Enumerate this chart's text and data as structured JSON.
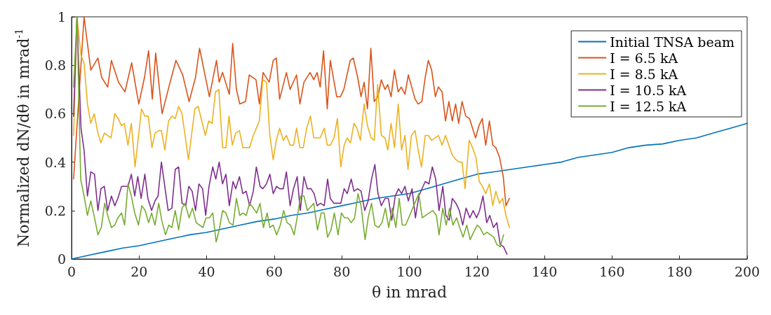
{
  "chart_data": {
    "type": "line",
    "xlabel": "θ in mrad",
    "ylabel": "Normalized dN/dθ in mrad$^{-1}$",
    "xlim": [
      0,
      200
    ],
    "xticks": [
      0,
      20,
      40,
      60,
      80,
      100,
      120,
      140,
      160,
      180,
      200
    ],
    "ylim": [
      0,
      1
    ],
    "yticks": [
      0,
      0.2,
      0.4,
      0.6,
      0.8,
      1
    ],
    "grid": false,
    "legend": "top right",
    "marker": "none",
    "line_style": "solid",
    "series": [
      {
        "name": "Initial TNSA beam",
        "color": "#0072bd",
        "x": [
          0,
          5,
          10,
          15,
          20,
          25,
          30,
          35,
          40,
          45,
          50,
          55,
          60,
          65,
          70,
          75,
          80,
          85,
          90,
          95,
          100,
          105,
          110,
          115,
          120,
          125,
          130,
          135,
          140,
          145,
          150,
          155,
          160,
          165,
          170,
          175,
          180,
          185,
          190,
          195,
          200
        ],
        "values": [
          0,
          0.015,
          0.03,
          0.045,
          0.055,
          0.07,
          0.085,
          0.1,
          0.11,
          0.125,
          0.14,
          0.155,
          0.165,
          0.18,
          0.19,
          0.205,
          0.22,
          0.235,
          0.25,
          0.26,
          0.27,
          0.29,
          0.31,
          0.33,
          0.35,
          0.36,
          0.37,
          0.38,
          0.39,
          0.4,
          0.42,
          0.43,
          0.44,
          0.46,
          0.47,
          0.475,
          0.49,
          0.5,
          0.52,
          0.54,
          0.56
        ]
      },
      {
        "name": "I = 6.5 kA",
        "color": "#d95319",
        "x": [
          0.6,
          3.7,
          5.7,
          7.8,
          8.9,
          10.7,
          11.8,
          13.9,
          15.8,
          17.8,
          19.9,
          21.6,
          22.8,
          23.9,
          24.9,
          26.8,
          28.8,
          30.9,
          32.9,
          34.8,
          36.7,
          37.9,
          40.8,
          42.9,
          43.7,
          44.7,
          46.7,
          47.7,
          48.8,
          49.8,
          51.5,
          52.6,
          54.6,
          55.6,
          56.7,
          58.5,
          59.7,
          60.6,
          61.6,
          63.6,
          64.7,
          66.6,
          67.6,
          68.8,
          70.6,
          71.7,
          72.7,
          73.6,
          74.6,
          75.7,
          76.6,
          78.5,
          79.6,
          80.6,
          82.5,
          83.4,
          84.7,
          85.7,
          86.6,
          87.6,
          88.6,
          89.6,
          90.7,
          91.7,
          92.8,
          93.6,
          94.6,
          95.6,
          96.7,
          97.6,
          98.7,
          99.7,
          101.7,
          102.6,
          103.7,
          104.7,
          105.6,
          106.6,
          107.7,
          108.6,
          109.7,
          110.7,
          111.7,
          112.7,
          113.7,
          114.6,
          115.6,
          116.7,
          117.8,
          119.6,
          120.6,
          121.6,
          122.6,
          123.7,
          124.7,
          125.6,
          126.7,
          127.8,
          128.6,
          129.6
        ],
        "values": [
          0.33,
          1,
          0.78,
          0.83,
          0.75,
          0.71,
          0.82,
          0.73,
          0.69,
          0.81,
          0.64,
          0.75,
          0.86,
          0.66,
          0.85,
          0.6,
          0.71,
          0.82,
          0.76,
          0.65,
          0.75,
          0.87,
          0.67,
          0.82,
          0.73,
          0.77,
          0.68,
          0.89,
          0.7,
          0.64,
          0.65,
          0.76,
          0.74,
          0.64,
          0.77,
          0.73,
          0.82,
          0.83,
          0.66,
          0.77,
          0.7,
          0.76,
          0.64,
          0.73,
          0.77,
          0.74,
          0.77,
          0.71,
          0.86,
          0.62,
          0.82,
          0.67,
          0.67,
          0.7,
          0.82,
          0.83,
          0.75,
          0.67,
          0.73,
          0.62,
          0.87,
          0.65,
          0.67,
          0.74,
          0.7,
          0.72,
          0.67,
          0.78,
          0.69,
          0.71,
          0.68,
          0.76,
          0.66,
          0.64,
          0.65,
          0.75,
          0.82,
          0.78,
          0.67,
          0.71,
          0.69,
          0.57,
          0.65,
          0.57,
          0.64,
          0.56,
          0.65,
          0.59,
          0.58,
          0.5,
          0.55,
          0.58,
          0.47,
          0.57,
          0.47,
          0.46,
          0.42,
          0.34,
          0.22,
          0.25
        ]
      },
      {
        "name": "I = 8.5 kA",
        "color": "#edb120",
        "x": [
          0.6,
          1.6,
          2.8,
          3.7,
          4.7,
          5.7,
          6.7,
          7.8,
          8.7,
          9.7,
          11.7,
          12.8,
          13.8,
          14.8,
          15.6,
          16.7,
          17.7,
          18.8,
          20.7,
          21.7,
          22.7,
          23.8,
          24.7,
          25.8,
          26.6,
          27.6,
          28.7,
          29.7,
          30.7,
          31.7,
          32.7,
          34.6,
          36.5,
          37.5,
          39.6,
          40.6,
          41.6,
          42.6,
          43.6,
          44.7,
          45.7,
          46.6,
          47.6,
          48.6,
          49.7,
          50.7,
          51.7,
          52.7,
          53.8,
          54.7,
          55.6,
          56.6,
          57.7,
          58.7,
          59.7,
          60.6,
          61.6,
          62.7,
          63.6,
          64.7,
          65.7,
          66.6,
          67.6,
          68.6,
          69.6,
          70.7,
          71.7,
          73.6,
          74.8,
          75.7,
          76.6,
          77.7,
          78.7,
          79.7,
          80.7,
          81.6,
          82.6,
          83.6,
          84.5,
          85.5,
          86.6,
          87.6,
          88.7,
          89.6,
          90.6,
          91.7,
          92.8,
          93.6,
          94.6,
          95.6,
          96.7,
          97.7,
          98.7,
          99.6,
          100.6,
          101.7,
          102.6,
          103.6,
          104.7,
          105.6,
          106.6,
          108.6,
          109.7,
          110.7,
          111.7,
          112.7,
          113.8,
          114.8,
          115.6,
          116.5,
          117.7,
          118.7,
          119.7,
          120.7,
          121.6,
          122.6,
          123.7,
          124.7,
          125.6,
          126.7,
          127.6,
          128.6,
          129.6
        ],
        "values": [
          0.51,
          1,
          0.84,
          0.81,
          0.64,
          0.56,
          0.6,
          0.52,
          0.48,
          0.52,
          0.5,
          0.6,
          0.58,
          0.55,
          0.56,
          0.47,
          0.56,
          0.38,
          0.62,
          0.59,
          0.59,
          0.46,
          0.52,
          0.53,
          0.53,
          0.45,
          0.57,
          0.59,
          0.58,
          0.63,
          0.6,
          0.41,
          0.62,
          0.63,
          0.51,
          0.57,
          0.56,
          0.69,
          0.7,
          0.46,
          0.46,
          0.59,
          0.47,
          0.52,
          0.53,
          0.46,
          0.46,
          0.46,
          0.51,
          0.54,
          0.57,
          0.74,
          0.73,
          0.51,
          0.41,
          0.49,
          0.54,
          0.49,
          0.51,
          0.47,
          0.47,
          0.54,
          0.46,
          0.46,
          0.54,
          0.59,
          0.5,
          0.5,
          0.54,
          0.47,
          0.47,
          0.5,
          0.58,
          0.38,
          0.47,
          0.5,
          0.48,
          0.56,
          0.54,
          0.49,
          0.64,
          0.55,
          0.5,
          0.49,
          0.72,
          0.51,
          0.5,
          0.45,
          0.56,
          0.46,
          0.64,
          0.45,
          0.51,
          0.37,
          0.51,
          0.53,
          0.45,
          0.38,
          0.51,
          0.51,
          0.49,
          0.51,
          0.47,
          0.51,
          0.47,
          0.43,
          0.41,
          0.4,
          0.4,
          0.29,
          0.49,
          0.46,
          0.42,
          0.32,
          0.3,
          0.27,
          0.31,
          0.22,
          0.28,
          0.23,
          0.25,
          0.18,
          0.13
        ]
      },
      {
        "name": "I = 10.5 kA",
        "color": "#7e2f8e",
        "x": [
          0.6,
          1.6,
          2.8,
          3.7,
          4.7,
          5.7,
          6.8,
          7.8,
          8.7,
          9.7,
          10.7,
          11.8,
          12.8,
          13.7,
          14.8,
          16.7,
          17.7,
          18.7,
          19.6,
          20.6,
          21.7,
          22.6,
          23.7,
          24.7,
          25.6,
          26.6,
          28.6,
          29.7,
          30.7,
          31.7,
          32.7,
          33.8,
          34.7,
          35.7,
          36.7,
          37.7,
          38.8,
          39.7,
          40.7,
          41.8,
          42.7,
          43.7,
          44.7,
          45.7,
          46.7,
          47.8,
          48.6,
          49.7,
          50.7,
          51.7,
          52.7,
          53.8,
          54.7,
          55.8,
          56.6,
          57.7,
          58.7,
          59.7,
          60.7,
          61.6,
          62.7,
          63.6,
          64.7,
          65.7,
          66.8,
          67.7,
          68.8,
          69.8,
          70.9,
          71.8,
          72.7,
          73.7,
          74.8,
          75.8,
          76.6,
          77.7,
          79.7,
          80.7,
          81.6,
          82.8,
          83.6,
          84.7,
          85.7,
          86.8,
          87.8,
          88.8,
          89.8,
          90.7,
          91.7,
          92.8,
          93.8,
          94.8,
          95.8,
          96.8,
          97.7,
          98.7,
          99.7,
          100.8,
          101.8,
          102.8,
          104.7,
          105.8,
          106.8,
          107.8,
          108.8,
          109.9,
          110.8,
          111.8,
          112.7,
          113.8,
          114.8,
          115.8,
          116.8,
          117.9,
          118.9,
          119.9,
          120.8,
          121.8,
          122.9,
          123.8,
          124.9,
          125.9,
          126.9,
          127.9,
          128.9
        ],
        "values": [
          0.59,
          1,
          0.54,
          0.45,
          0.26,
          0.36,
          0.35,
          0.2,
          0.29,
          0.3,
          0.2,
          0.26,
          0.22,
          0.25,
          0.3,
          0.3,
          0.35,
          0.26,
          0.34,
          0.25,
          0.35,
          0.25,
          0.2,
          0.24,
          0.26,
          0.4,
          0.2,
          0.21,
          0.37,
          0.38,
          0.23,
          0.22,
          0.3,
          0.28,
          0.2,
          0.31,
          0.29,
          0.18,
          0.3,
          0.38,
          0.33,
          0.4,
          0.31,
          0.35,
          0.22,
          0.32,
          0.29,
          0.34,
          0.27,
          0.28,
          0.22,
          0.28,
          0.38,
          0.3,
          0.29,
          0.31,
          0.35,
          0.27,
          0.3,
          0.29,
          0.29,
          0.36,
          0.22,
          0.29,
          0.34,
          0.2,
          0.34,
          0.29,
          0.29,
          0.27,
          0.22,
          0.23,
          0.22,
          0.33,
          0.25,
          0.23,
          0.23,
          0.29,
          0.27,
          0.33,
          0.28,
          0.29,
          0.28,
          0.2,
          0.24,
          0.33,
          0.39,
          0.27,
          0.22,
          0.25,
          0.25,
          0.16,
          0.26,
          0.29,
          0.27,
          0.3,
          0.24,
          0.29,
          0.17,
          0.26,
          0.32,
          0.31,
          0.38,
          0.33,
          0.2,
          0.3,
          0.18,
          0.16,
          0.25,
          0.23,
          0.2,
          0.14,
          0.21,
          0.17,
          0.2,
          0.17,
          0.2,
          0.26,
          0.15,
          0.18,
          0.13,
          0.15,
          0.06,
          0.05,
          0.02
        ]
      },
      {
        "name": "I = 12.5 kA",
        "color": "#77ac30",
        "x": [
          0.6,
          1.6,
          2.7,
          3.7,
          4.7,
          5.7,
          6.8,
          7.8,
          8.8,
          9.8,
          10.9,
          11.8,
          12.8,
          13.7,
          14.8,
          15.7,
          16.7,
          17.7,
          18.7,
          19.8,
          20.8,
          21.8,
          22.8,
          23.7,
          24.7,
          25.8,
          26.7,
          27.8,
          28.8,
          29.7,
          30.7,
          31.7,
          32.7,
          33.6,
          34.8,
          35.8,
          36.9,
          38.9,
          39.8,
          40.8,
          41.8,
          42.8,
          43.7,
          44.7,
          45.7,
          46.7,
          47.8,
          48.8,
          49.8,
          50.7,
          51.7,
          52.7,
          53.8,
          54.8,
          55.8,
          56.8,
          57.9,
          58.7,
          59.7,
          60.7,
          61.8,
          62.8,
          63.8,
          64.8,
          65.9,
          66.9,
          67.8,
          68.8,
          69.8,
          71.7,
          72.8,
          73.9,
          74.8,
          75.8,
          76.8,
          77.8,
          78.9,
          79.9,
          80.8,
          81.8,
          82.8,
          83.8,
          84.8,
          85.7,
          86.9,
          87.8,
          88.8,
          89.8,
          90.9,
          91.9,
          92.9,
          93.9,
          94.9,
          96.0,
          97.0,
          97.9,
          98.9,
          102.8,
          103.8,
          106.9,
          108.0,
          108.8,
          109.9,
          110.9,
          111.9,
          112.9,
          114.0,
          114.9,
          115.9,
          117.0,
          118.0,
          119.0,
          120.1,
          120.9,
          122.0,
          123.0,
          124.0,
          125.0,
          125.9,
          126.9,
          127.9
        ],
        "values": [
          0.71,
          1,
          0.33,
          0.26,
          0.18,
          0.24,
          0.17,
          0.1,
          0.13,
          0.23,
          0.17,
          0.13,
          0.14,
          0.17,
          0.19,
          0.14,
          0.31,
          0.26,
          0.19,
          0.14,
          0.22,
          0.2,
          0.15,
          0.19,
          0.14,
          0.23,
          0.16,
          0.1,
          0.14,
          0.13,
          0.2,
          0.12,
          0.21,
          0.23,
          0.17,
          0.21,
          0.15,
          0.13,
          0.17,
          0.17,
          0.19,
          0.07,
          0.12,
          0.2,
          0.19,
          0.15,
          0.14,
          0.25,
          0.18,
          0.19,
          0.18,
          0.23,
          0.21,
          0.19,
          0.23,
          0.13,
          0.19,
          0.13,
          0.14,
          0.1,
          0.14,
          0.2,
          0.15,
          0.14,
          0.1,
          0.18,
          0.26,
          0.26,
          0.2,
          0.23,
          0.12,
          0.19,
          0.19,
          0.09,
          0.12,
          0.19,
          0.1,
          0.19,
          0.17,
          0.17,
          0.15,
          0.17,
          0.27,
          0.22,
          0.08,
          0.17,
          0.23,
          0.14,
          0.13,
          0.15,
          0.21,
          0.13,
          0.21,
          0.13,
          0.25,
          0.14,
          0.14,
          0.27,
          0.17,
          0.2,
          0.18,
          0.1,
          0.21,
          0.14,
          0.21,
          0.14,
          0.17,
          0.13,
          0.09,
          0.14,
          0.08,
          0.11,
          0.14,
          0.13,
          0.1,
          0.11,
          0.1,
          0.09,
          0.06,
          0.05,
          0.1
        ]
      }
    ]
  }
}
